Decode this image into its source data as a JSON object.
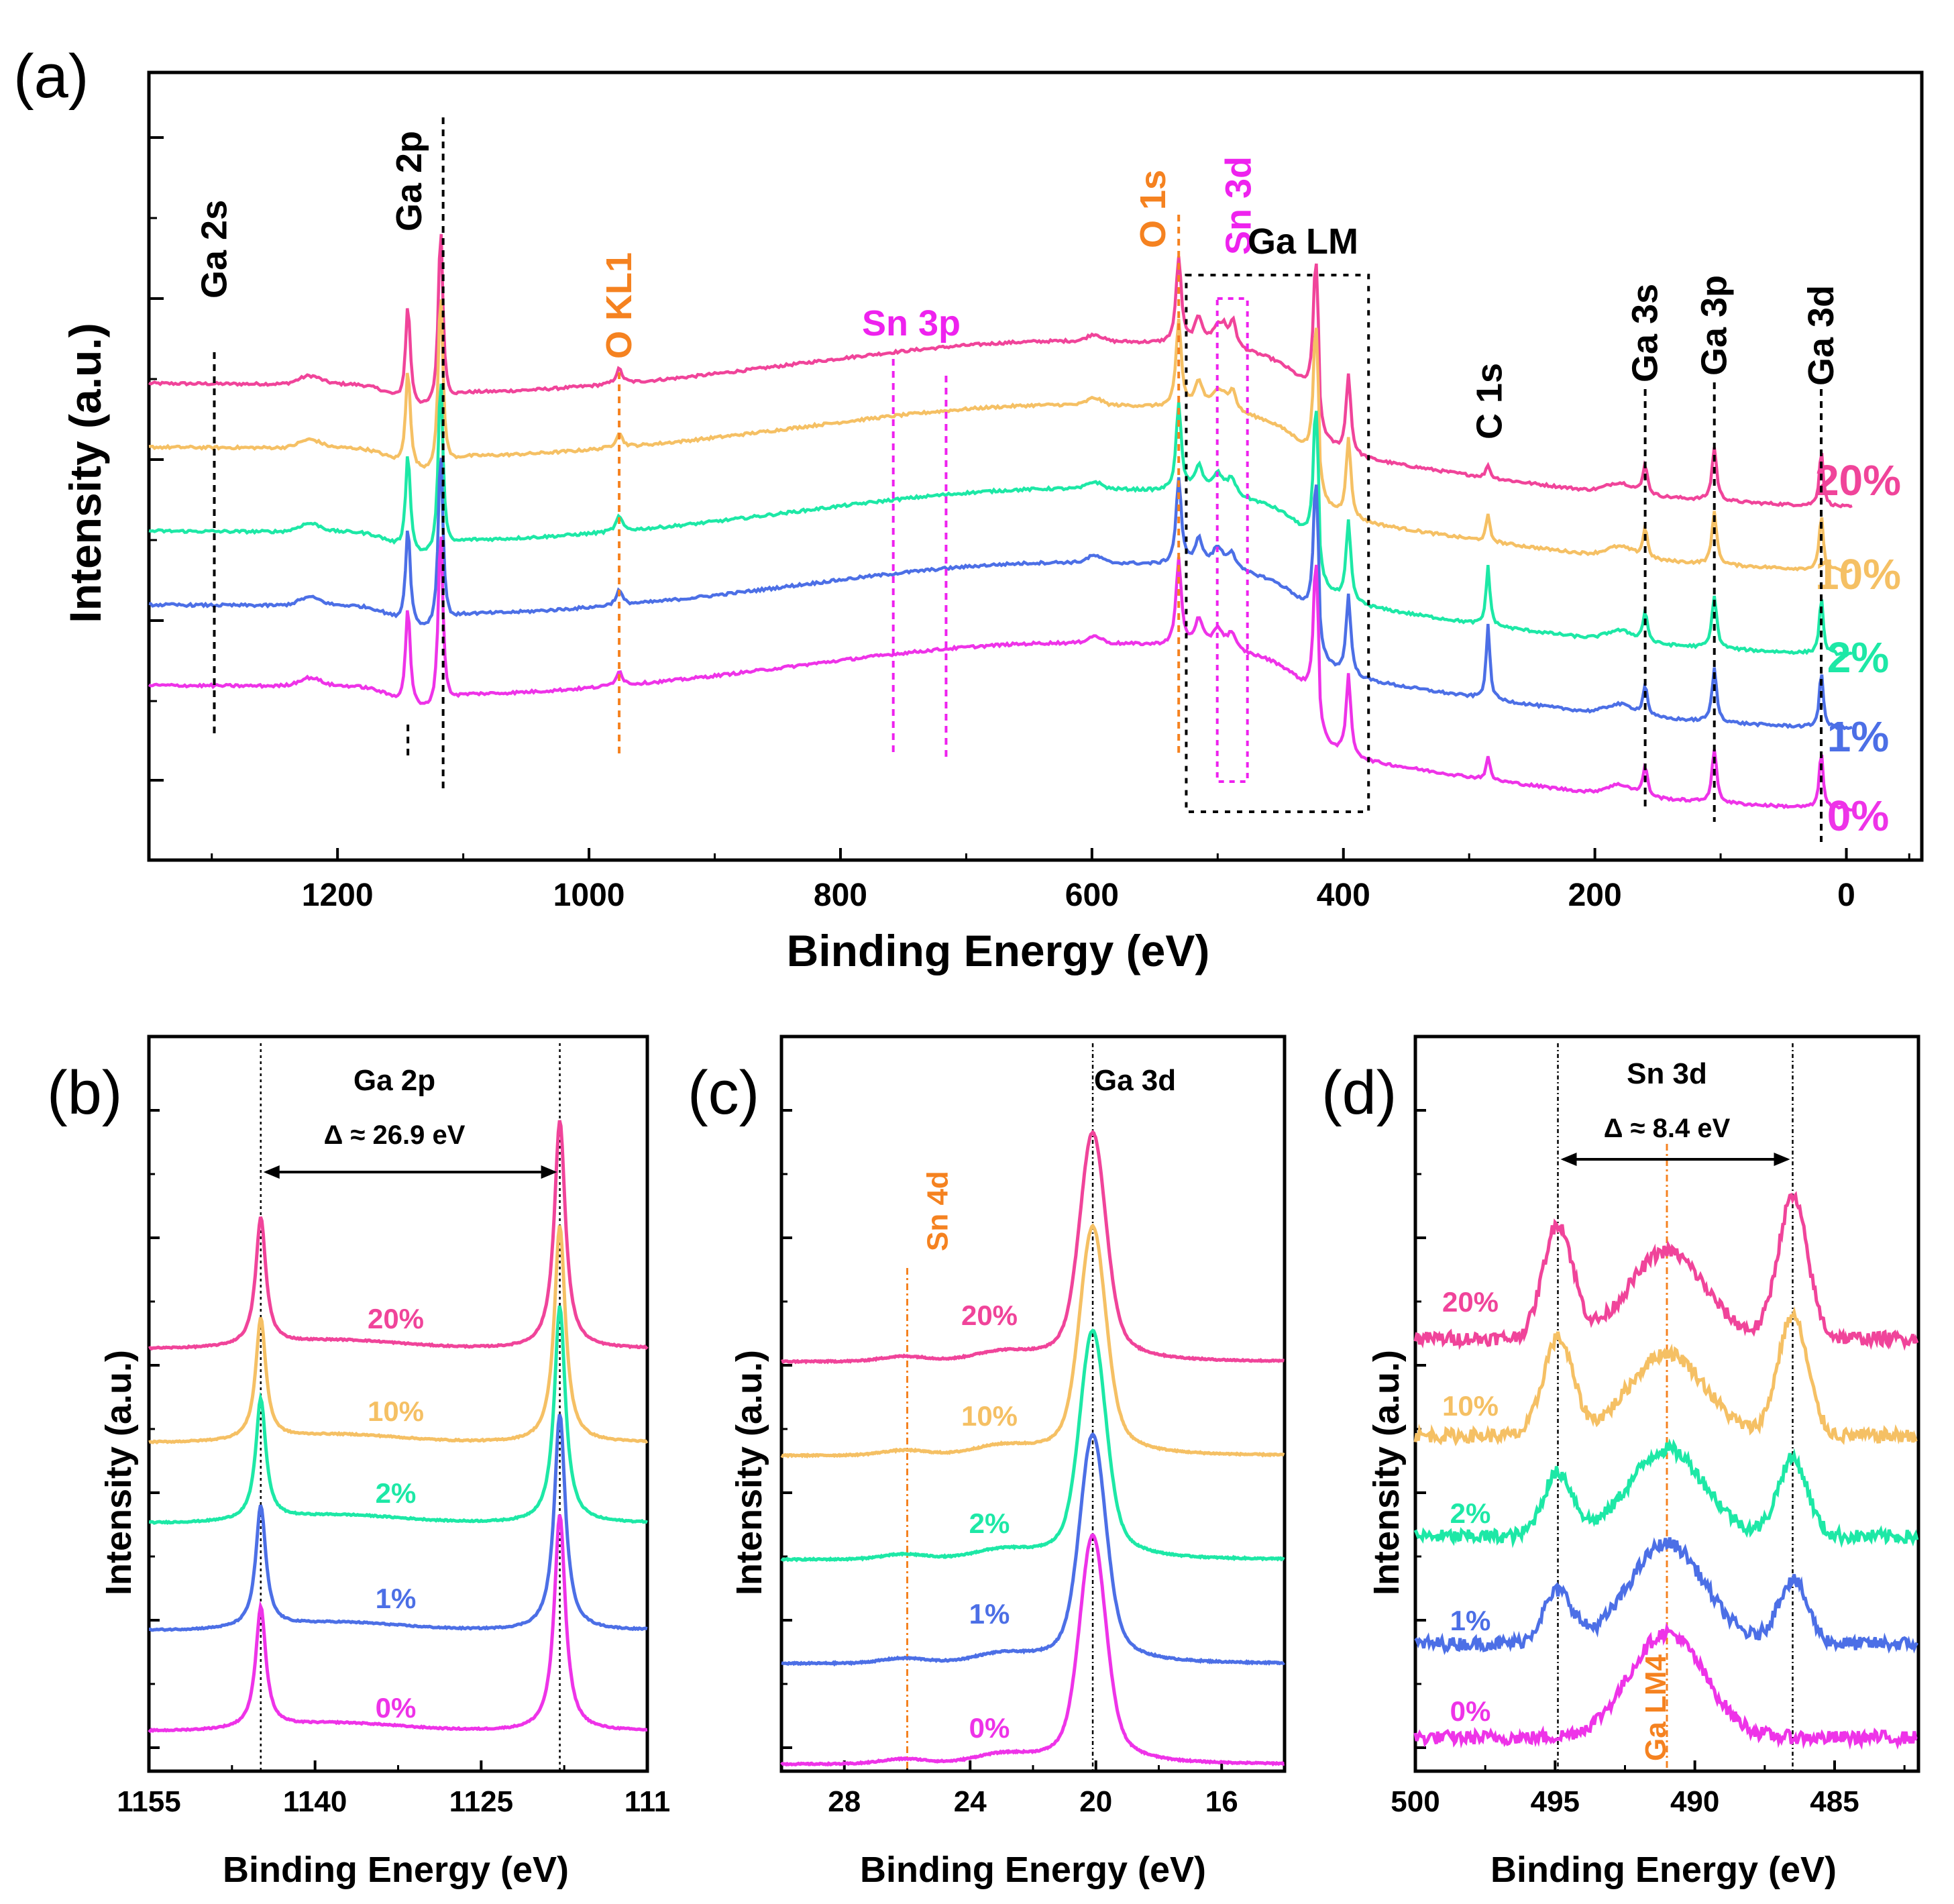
{
  "chart_data": [
    {
      "panel": "(a)",
      "type": "line",
      "title": "",
      "xlabel": "Binding Energy (eV)",
      "ylabel": "Intensity (a.u.)",
      "xlim": [
        1350,
        -60
      ],
      "x_ticks": [
        1200,
        1000,
        800,
        600,
        400,
        200,
        0
      ],
      "x_tick_labels": [
        "1200",
        "1000",
        "800",
        "600",
        "400",
        "200",
        "0"
      ],
      "series": [
        {
          "name": "20%",
          "color": "#f0449a"
        },
        {
          "name": "10%",
          "color": "#f5c064"
        },
        {
          "name": "2%",
          "color": "#1de8a6"
        },
        {
          "name": "1%",
          "color": "#4c6fe6"
        },
        {
          "name": "0%",
          "color": "#ee33e8"
        }
      ],
      "peaks": [
        {
          "label": "Ga 2s",
          "x": 1298,
          "color": "#000000"
        },
        {
          "label": "Ga 2p",
          "x": 1144,
          "color": "#000000"
        },
        {
          "label": "O KL1",
          "x": 976,
          "color": "#f58220"
        },
        {
          "label": "Sn 3p",
          "x": [
            758,
            716
          ],
          "color": "#ee22ee"
        },
        {
          "label": "O 1s",
          "x": 531,
          "color": "#f58220"
        },
        {
          "label": "Sn 3d",
          "x": [
            495,
            487
          ],
          "color": "#ee22ee"
        },
        {
          "label": "Ga LM",
          "x": [
            525,
            380
          ],
          "color": "#000000"
        },
        {
          "label": "C 1s",
          "x": 285,
          "color": "#000000"
        },
        {
          "label": "Ga 3s",
          "x": 160,
          "color": "#000000"
        },
        {
          "label": "Ga 3p",
          "x": 105,
          "color": "#000000"
        },
        {
          "label": "Ga 3d",
          "x": 20,
          "color": "#000000"
        }
      ]
    },
    {
      "panel": "(b)",
      "type": "line",
      "title": "Ga 2p",
      "xlabel": "Binding Energy (eV)",
      "ylabel": "Intensity (a.u.)",
      "xlim": [
        1155,
        1110
      ],
      "x_tick_labels": [
        "1155",
        "1140",
        "1125",
        "111"
      ],
      "peak_positions": [
        1144.9,
        1117.9
      ],
      "annotation": "Δ ≈ 26.9 eV",
      "series_labels": [
        "20%",
        "10%",
        "2%",
        "1%",
        "0%"
      ]
    },
    {
      "panel": "(c)",
      "type": "line",
      "title": "Ga 3d",
      "xlabel": "Binding Energy (eV)",
      "ylabel": "Intensity (a.u.)",
      "xlim": [
        30,
        14
      ],
      "x_tick_labels": [
        "28",
        "24",
        "20",
        "16"
      ],
      "peak_positions": [
        20.1
      ],
      "reference_line": {
        "label": "Sn 4d",
        "x": 26
      },
      "series_labels": [
        "20%",
        "10%",
        "2%",
        "1%",
        "0%"
      ]
    },
    {
      "panel": "(d)",
      "type": "line",
      "title": "Sn 3d",
      "xlabel": "Binding Energy (eV)",
      "ylabel": "Intensity (a.u.)",
      "xlim": [
        500,
        482
      ],
      "x_tick_labels": [
        "500",
        "495",
        "490",
        "485"
      ],
      "peak_positions": [
        494.9,
        486.5
      ],
      "annotation": "Δ ≈ 8.4 eV",
      "reference_line": {
        "label": "Ga LM4",
        "x": 491
      },
      "series_labels": [
        "20%",
        "10%",
        "2%",
        "1%",
        "0%"
      ]
    }
  ]
}
